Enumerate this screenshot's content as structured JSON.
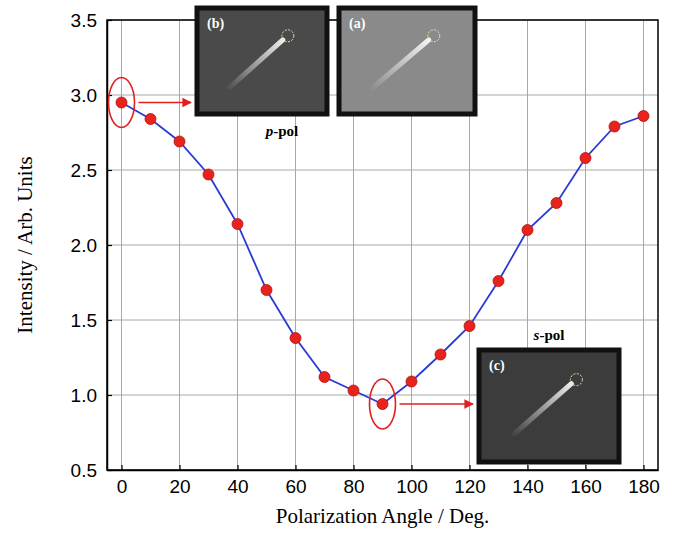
{
  "chart_data": {
    "type": "line",
    "x_label": "Polarization Angle / Deg.",
    "y_label": "Intensity / Arb. Units",
    "x": [
      0,
      10,
      20,
      30,
      40,
      50,
      60,
      70,
      80,
      90,
      100,
      110,
      120,
      130,
      140,
      150,
      160,
      170,
      180
    ],
    "values": [
      2.95,
      2.84,
      2.69,
      2.47,
      2.14,
      1.7,
      1.38,
      1.12,
      1.03,
      0.94,
      1.09,
      1.27,
      1.46,
      1.76,
      2.1,
      2.28,
      2.58,
      2.79,
      2.86
    ],
    "color": "#2a3bd6",
    "marker": "circle",
    "xlim": [
      -5,
      185
    ],
    "xticks": [
      0,
      20,
      40,
      60,
      80,
      100,
      120,
      140,
      160,
      180
    ],
    "ylim": [
      0.5,
      3.5
    ],
    "yticks": [
      0.5,
      {
        "value": 1,
        "label": "1.0"
      },
      1.5,
      {
        "value": 2,
        "label": "2.0"
      },
      2.5,
      {
        "value": 3,
        "label": "3.0"
      },
      3.5
    ],
    "grid": true,
    "insets": [
      {
        "label": "(b)"
      },
      {
        "label": "(a)"
      },
      {
        "label": "(c)"
      }
    ],
    "annotations": [
      "p-pol",
      "s-pol"
    ]
  }
}
